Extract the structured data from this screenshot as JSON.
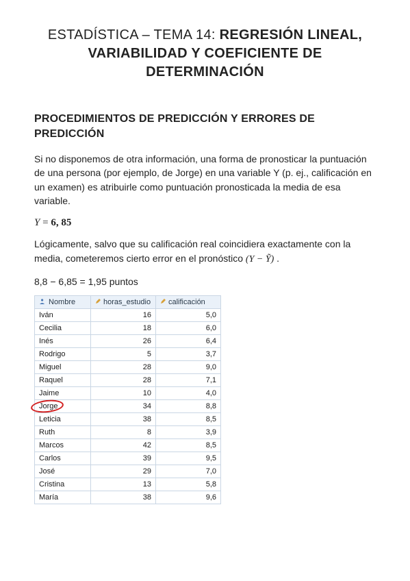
{
  "title": {
    "prefix": "ESTADÍSTICA – TEMA 14: ",
    "bold_lines": [
      "REGRESIÓN LINEAL,",
      "VARIABILIDAD Y COEFICIENTE DE",
      "DETERMINACIÓN"
    ]
  },
  "subtitle": "PROCEDIMIENTOS DE PREDICCIÓN Y ERRORES DE PREDICCIÓN",
  "para1": "Si no disponemos de otra información, una forma de pronosticar la puntuación de una persona (por ejemplo, de Jorge) en una variable Y (p. ej., calificación en un examen) es atribuirle como puntuación pronosticada la media de esa variable.",
  "formula": {
    "lhs_var": "Y",
    "equals": " = ",
    "value": "6, 85"
  },
  "para2_a": " Lógicamente, salvo que su calificación real coincidiera exactamente con la media, cometeremos cierto error en el pronóstico ",
  "para2_math": "(Y − Ỹ)",
  "para2_b": " .",
  "calc_line": "8,8 − 6,85 = 1,95 puntos",
  "table": {
    "headers": {
      "col1": "Nombre",
      "col2": "horas_estudio",
      "col3": "calificación"
    },
    "header_bg": "#eaf1f9",
    "border_color": "#c9d6e4",
    "name_icon_color": "#4a78b5",
    "pencil_icon_color": "#d7a13a",
    "rows": [
      {
        "name": "Iván",
        "hours": "16",
        "grade": "5,0"
      },
      {
        "name": "Cecilia",
        "hours": "18",
        "grade": "6,0"
      },
      {
        "name": "Inés",
        "hours": "26",
        "grade": "6,4"
      },
      {
        "name": "Rodrigo",
        "hours": "5",
        "grade": "3,7"
      },
      {
        "name": "Miguel",
        "hours": "28",
        "grade": "9,0"
      },
      {
        "name": "Raquel",
        "hours": "28",
        "grade": "7,1"
      },
      {
        "name": "Jaime",
        "hours": "10",
        "grade": "4,0"
      },
      {
        "name": "Jorge",
        "hours": "34",
        "grade": "8,8"
      },
      {
        "name": "Leticia",
        "hours": "38",
        "grade": "8,5"
      },
      {
        "name": "Ruth",
        "hours": "8",
        "grade": "3,9"
      },
      {
        "name": "Marcos",
        "hours": "42",
        "grade": "8,5"
      },
      {
        "name": "Carlos",
        "hours": "39",
        "grade": "9,5"
      },
      {
        "name": "José",
        "hours": "29",
        "grade": "7,0"
      },
      {
        "name": "Cristina",
        "hours": "13",
        "grade": "5,8"
      },
      {
        "name": "María",
        "hours": "38",
        "grade": "9,6"
      }
    ],
    "highlighted_row_index": 7
  },
  "annotation": {
    "circle_color": "#d22020",
    "stroke_width": 2,
    "ellipse_w": 48,
    "ellipse_h": 18
  }
}
